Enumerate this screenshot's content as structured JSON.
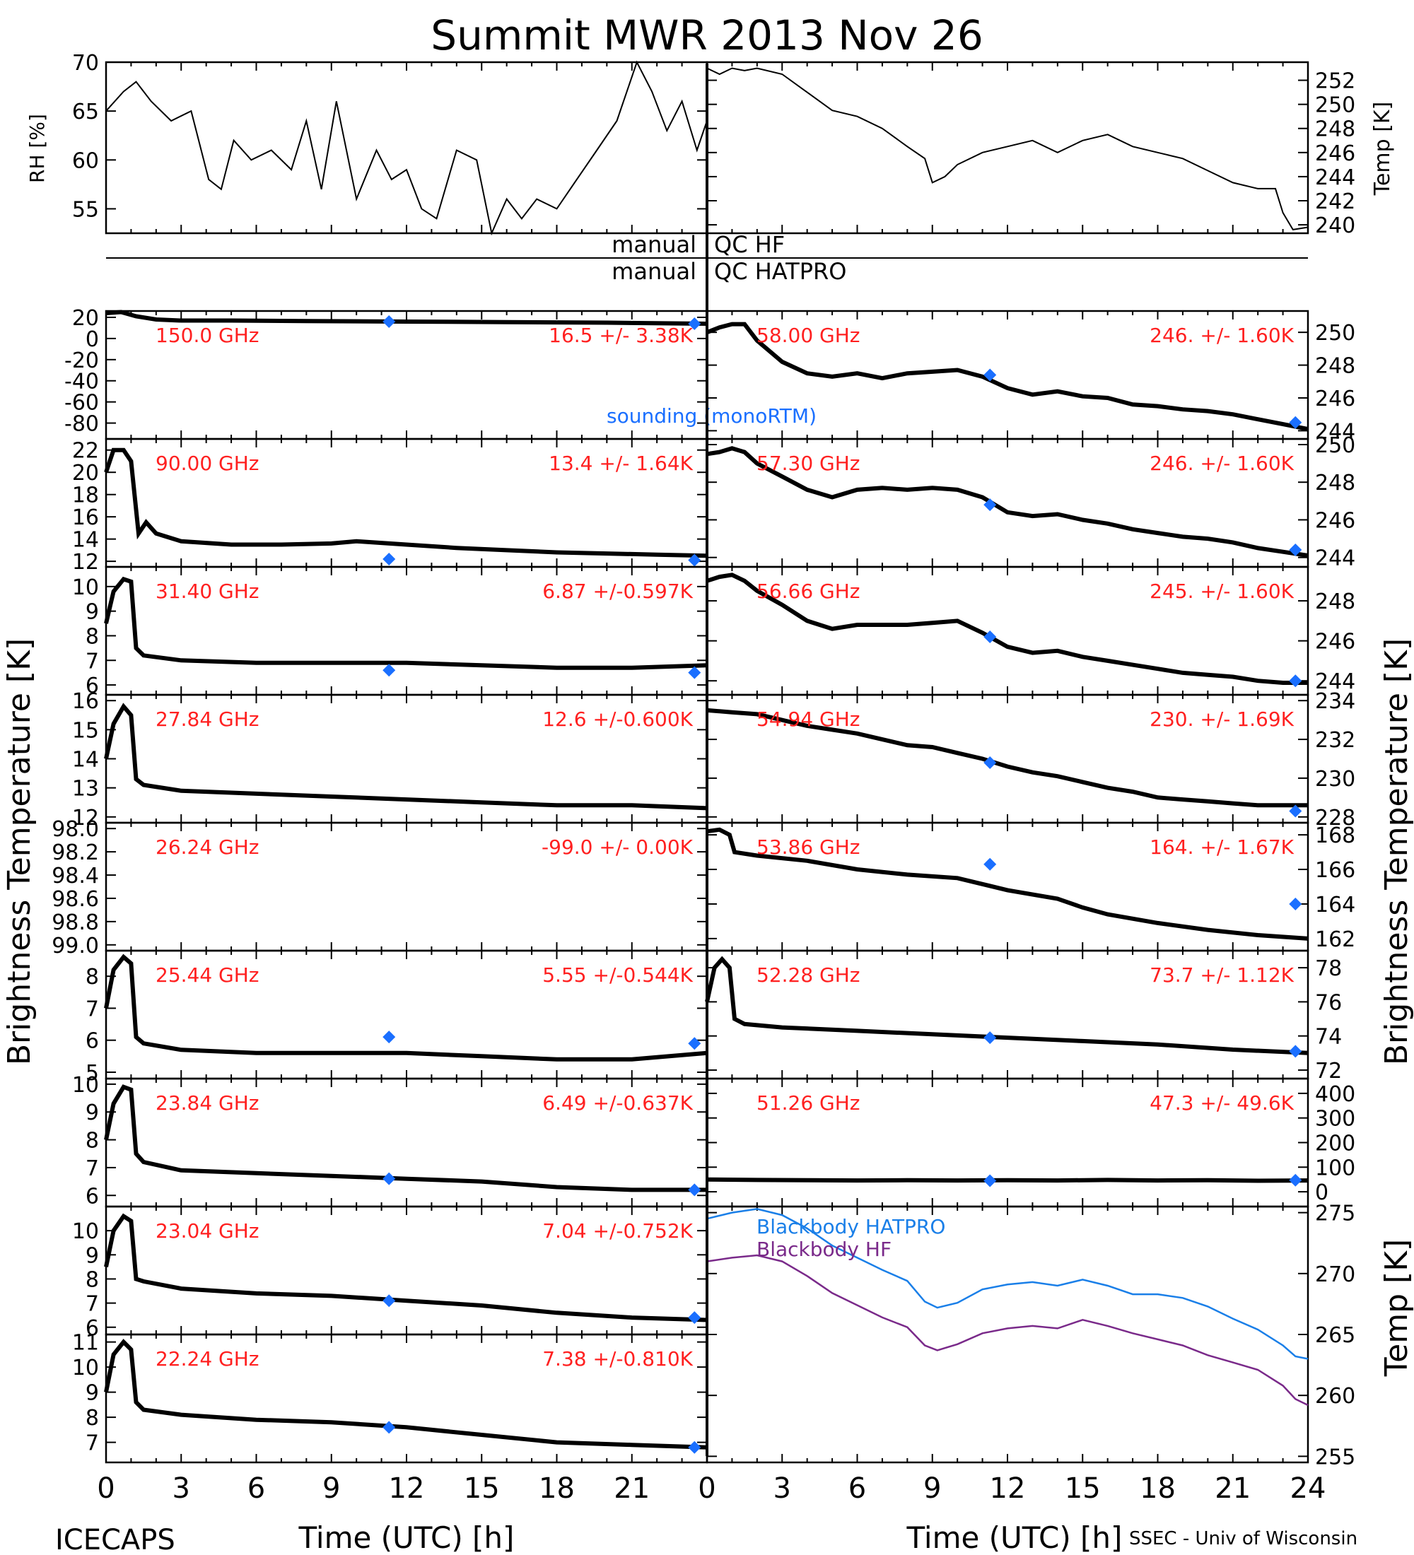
{
  "title": "Summit MWR 2013 Nov 26",
  "footer": {
    "left": "ICECAPS",
    "right": "SSEC - Univ of Wisconsin"
  },
  "colors": {
    "data": "#000000",
    "label": "#ff2020",
    "sounding": "#1a6fff",
    "blackbody_hatpro": "#1a7fe8",
    "blackbody_hf": "#7a2a8a"
  },
  "qc_lines": [
    {
      "left": "manual",
      "right": "QC HF"
    },
    {
      "left": "manual",
      "right": "QC HATPRO"
    }
  ],
  "axis_labels": {
    "time": "Time (UTC) [h]",
    "bt_left": "Brightness Temperature [K]",
    "bt_right": "Brightness Temperature [K]",
    "rh": "RH [%]",
    "temp_top": "Temp [K]",
    "temp_bb": "Temp [K]"
  },
  "chart_data": [
    {
      "id": "rh",
      "type": "line",
      "ylabel": "RH [%]",
      "xlim": [
        0,
        24
      ],
      "ylim": [
        52.5,
        70
      ],
      "yticks": [
        55,
        60,
        65,
        70
      ],
      "x": [
        0,
        0.7,
        1.2,
        1.8,
        2.6,
        3.4,
        4.1,
        4.6,
        5.1,
        5.8,
        6.6,
        7.4,
        8,
        8.6,
        9.2,
        10,
        10.8,
        11.4,
        12,
        12.6,
        13.2,
        14,
        14.8,
        15.4,
        16,
        16.6,
        17.2,
        18,
        18.8,
        19.6,
        20.4,
        21.2,
        21.8,
        22.4,
        23,
        23.6,
        24
      ],
      "y": [
        65,
        67,
        68,
        66,
        64,
        65,
        58,
        57,
        62,
        60,
        61,
        59,
        64,
        57,
        66,
        56,
        61,
        58,
        59,
        55,
        54,
        61,
        60,
        52.5,
        56,
        54,
        56,
        55,
        58,
        61,
        64,
        70,
        67,
        63,
        66,
        61,
        64
      ]
    },
    {
      "id": "temp_top",
      "type": "line",
      "ylabel": "Temp [K]",
      "xlim": [
        0,
        24
      ],
      "ylim": [
        239.3,
        253.5
      ],
      "yticks": [
        240,
        242,
        244,
        246,
        248,
        250,
        252
      ],
      "x": [
        0,
        0.5,
        1,
        1.5,
        2,
        3,
        4,
        5,
        6,
        7,
        8,
        8.7,
        9,
        9.5,
        10,
        11,
        12,
        13,
        14,
        15,
        16,
        17,
        18,
        19,
        20,
        21,
        22,
        22.7,
        23,
        23.4,
        24
      ],
      "y": [
        253,
        252.5,
        253,
        252.8,
        253,
        252.5,
        251,
        249.5,
        249,
        248,
        246.5,
        245.5,
        243.5,
        244,
        245,
        246,
        246.5,
        247,
        246,
        247,
        247.5,
        246.5,
        246,
        245.5,
        244.5,
        243.5,
        243,
        243,
        241,
        239.6,
        239.8
      ]
    },
    {
      "id": "ch_150",
      "type": "line",
      "side": "left",
      "label": "150.0 GHz",
      "stats": "16.5 +/- 3.38K",
      "ylim": [
        -95,
        26
      ],
      "yticks": [
        20,
        0,
        -20,
        -40,
        -60,
        -80
      ],
      "x": [
        0,
        0.6,
        1.2,
        2,
        3,
        5,
        8,
        12,
        16,
        20,
        24
      ],
      "y": [
        24,
        25,
        21,
        18,
        17,
        17,
        16.5,
        16,
        15.5,
        15,
        14
      ],
      "sounding": {
        "x": [
          11.3,
          23.5
        ],
        "y": [
          16,
          14
        ]
      }
    },
    {
      "id": "ch_90",
      "type": "line",
      "side": "left",
      "label": "90.00 GHz",
      "stats": "13.4 +/- 1.64K",
      "ylim": [
        11.5,
        23
      ],
      "yticks": [
        12,
        14,
        16,
        18,
        20,
        22
      ],
      "x": [
        0,
        0.3,
        0.7,
        1,
        1.3,
        1.6,
        2,
        3,
        5,
        7,
        9,
        10,
        12,
        14,
        16,
        18,
        20,
        22,
        24
      ],
      "y": [
        20,
        22,
        22,
        21,
        14.5,
        15.5,
        14.5,
        13.8,
        13.5,
        13.5,
        13.6,
        13.8,
        13.5,
        13.2,
        13,
        12.8,
        12.7,
        12.6,
        12.5
      ],
      "sounding": {
        "x": [
          11.3,
          23.5
        ],
        "y": [
          12.2,
          12.1
        ]
      }
    },
    {
      "id": "ch_3140",
      "type": "line",
      "side": "left",
      "label": "31.40 GHz",
      "stats": "6.87 +/-0.597K",
      "ylim": [
        5.6,
        10.8
      ],
      "yticks": [
        6,
        7,
        8,
        9,
        10
      ],
      "x": [
        0,
        0.3,
        0.7,
        1,
        1.2,
        1.5,
        3,
        6,
        9,
        12,
        15,
        18,
        21,
        24
      ],
      "y": [
        8.5,
        9.8,
        10.3,
        10.2,
        7.5,
        7.2,
        7,
        6.9,
        6.9,
        6.9,
        6.8,
        6.7,
        6.7,
        6.8
      ],
      "sounding": {
        "x": [
          11.3,
          23.5
        ],
        "y": [
          6.6,
          6.5
        ]
      }
    },
    {
      "id": "ch_2784",
      "type": "line",
      "side": "left",
      "label": "27.84 GHz",
      "stats": "12.6 +/-0.600K",
      "ylim": [
        11.8,
        16.2
      ],
      "yticks": [
        12,
        13,
        14,
        15,
        16
      ],
      "x": [
        0,
        0.3,
        0.7,
        1,
        1.2,
        1.5,
        3,
        6,
        9,
        12,
        15,
        18,
        21,
        24
      ],
      "y": [
        14,
        15.2,
        15.8,
        15.5,
        13.3,
        13.1,
        12.9,
        12.8,
        12.7,
        12.6,
        12.5,
        12.4,
        12.4,
        12.3
      ],
      "sounding": {
        "x": [],
        "y": []
      }
    },
    {
      "id": "ch_2624",
      "type": "line",
      "side": "left",
      "label": "26.24 GHz",
      "stats": "-99.0 +/- 0.00K",
      "ylim": [
        -99.05,
        -97.95
      ],
      "yticks": [
        -98.0,
        -98.2,
        -98.4,
        -98.6,
        -98.8,
        -99.0
      ],
      "tick_labels": [
        "98.0",
        "98.2",
        "98.4",
        "98.6",
        "98.8",
        "99.0"
      ],
      "x": [],
      "y": [],
      "sounding": {
        "x": [],
        "y": []
      }
    },
    {
      "id": "ch_2544",
      "type": "line",
      "side": "left",
      "label": "25.44 GHz",
      "stats": "5.55 +/-0.544K",
      "ylim": [
        4.8,
        8.8
      ],
      "yticks": [
        5,
        6,
        7,
        8
      ],
      "x": [
        0,
        0.3,
        0.7,
        1,
        1.2,
        1.5,
        3,
        6,
        9,
        12,
        15,
        18,
        21,
        24
      ],
      "y": [
        7,
        8.2,
        8.6,
        8.4,
        6.1,
        5.9,
        5.7,
        5.6,
        5.6,
        5.6,
        5.5,
        5.4,
        5.4,
        5.6
      ],
      "sounding": {
        "x": [
          11.3,
          23.5
        ],
        "y": [
          6.1,
          5.9
        ]
      }
    },
    {
      "id": "ch_2384",
      "type": "line",
      "side": "left",
      "label": "23.84 GHz",
      "stats": "6.49 +/-0.637K",
      "ylim": [
        5.6,
        10.2
      ],
      "yticks": [
        6,
        7,
        8,
        9,
        10
      ],
      "x": [
        0,
        0.3,
        0.7,
        1,
        1.2,
        1.5,
        3,
        6,
        9,
        12,
        15,
        18,
        21,
        24
      ],
      "y": [
        8,
        9.3,
        9.9,
        9.8,
        7.5,
        7.2,
        6.9,
        6.8,
        6.7,
        6.6,
        6.5,
        6.3,
        6.2,
        6.2
      ],
      "sounding": {
        "x": [
          11.3,
          23.5
        ],
        "y": [
          6.6,
          6.2
        ]
      }
    },
    {
      "id": "ch_2304",
      "type": "line",
      "side": "left",
      "label": "23.04 GHz",
      "stats": "7.04 +/-0.752K",
      "ylim": [
        5.7,
        11
      ],
      "yticks": [
        6,
        7,
        8,
        9,
        10
      ],
      "x": [
        0,
        0.3,
        0.7,
        1,
        1.2,
        1.5,
        3,
        6,
        9,
        12,
        15,
        18,
        21,
        24
      ],
      "y": [
        8.5,
        10,
        10.6,
        10.4,
        8,
        7.9,
        7.6,
        7.4,
        7.3,
        7.1,
        6.9,
        6.6,
        6.4,
        6.3
      ],
      "sounding": {
        "x": [
          11.3,
          23.5
        ],
        "y": [
          7.1,
          6.4
        ]
      }
    },
    {
      "id": "ch_2224",
      "type": "line",
      "side": "left",
      "label": "22.24 GHz",
      "stats": "7.38 +/-0.810K",
      "ylim": [
        6.2,
        11.3
      ],
      "yticks": [
        7,
        8,
        9,
        10,
        11
      ],
      "x": [
        0,
        0.3,
        0.7,
        1,
        1.2,
        1.5,
        3,
        6,
        9,
        12,
        15,
        18,
        21,
        24
      ],
      "y": [
        9,
        10.5,
        11,
        10.7,
        8.6,
        8.3,
        8.1,
        7.9,
        7.8,
        7.6,
        7.3,
        7,
        6.9,
        6.8
      ],
      "sounding": {
        "x": [
          11.3,
          23.5
        ],
        "y": [
          7.6,
          6.8
        ]
      }
    },
    {
      "id": "ch_5800",
      "type": "line",
      "side": "right",
      "label": "58.00 GHz",
      "stats": "246. +/- 1.60K",
      "ylim": [
        243.5,
        251.3
      ],
      "yticks": [
        244,
        246,
        248,
        250
      ],
      "x": [
        0,
        0.5,
        1,
        1.5,
        2,
        3,
        4,
        5,
        6,
        7,
        8,
        9,
        10,
        11,
        12,
        13,
        14,
        15,
        16,
        17,
        18,
        19,
        20,
        21,
        22,
        23,
        24
      ],
      "y": [
        250,
        250.3,
        250.5,
        250.5,
        249.5,
        248.2,
        247.5,
        247.3,
        247.5,
        247.2,
        247.5,
        247.6,
        247.7,
        247.3,
        246.6,
        246.2,
        246.4,
        246.1,
        246,
        245.6,
        245.5,
        245.3,
        245.2,
        245,
        244.7,
        244.4,
        244.1
      ],
      "sounding": {
        "x": [
          11.3,
          23.5
        ],
        "y": [
          247.4,
          244.5
        ]
      }
    },
    {
      "id": "ch_5730",
      "type": "line",
      "side": "right",
      "label": "57.30 GHz",
      "stats": "246. +/- 1.60K",
      "ylim": [
        243.5,
        250.3
      ],
      "yticks": [
        244,
        246,
        248,
        250
      ],
      "x": [
        0,
        0.5,
        1,
        1.5,
        2,
        3,
        4,
        5,
        6,
        7,
        8,
        9,
        10,
        11,
        12,
        13,
        14,
        15,
        16,
        17,
        18,
        19,
        20,
        21,
        22,
        23,
        24
      ],
      "y": [
        249.5,
        249.6,
        249.8,
        249.6,
        249,
        248.3,
        247.6,
        247.2,
        247.6,
        247.7,
        247.6,
        247.7,
        247.6,
        247.2,
        246.4,
        246.2,
        246.3,
        246,
        245.8,
        245.5,
        245.3,
        245.1,
        245,
        244.8,
        244.5,
        244.3,
        244.1
      ],
      "sounding": {
        "x": [
          11.3,
          23.5
        ],
        "y": [
          246.8,
          244.4
        ]
      }
    },
    {
      "id": "ch_5666",
      "type": "line",
      "side": "right",
      "label": "56.66 GHz",
      "stats": "245. +/- 1.60K",
      "ylim": [
        243.3,
        249.7
      ],
      "yticks": [
        244,
        246,
        248
      ],
      "x": [
        0,
        0.5,
        1,
        1.5,
        2,
        3,
        4,
        5,
        6,
        7,
        8,
        9,
        10,
        11,
        12,
        13,
        14,
        15,
        16,
        17,
        18,
        19,
        20,
        21,
        22,
        23,
        24
      ],
      "y": [
        249,
        249.2,
        249.3,
        249,
        248.5,
        247.8,
        247,
        246.6,
        246.8,
        246.8,
        246.8,
        246.9,
        247,
        246.4,
        245.7,
        245.4,
        245.5,
        245.2,
        245,
        244.8,
        244.6,
        244.4,
        244.3,
        244.2,
        244,
        243.9,
        243.9
      ],
      "sounding": {
        "x": [
          11.3,
          23.5
        ],
        "y": [
          246.2,
          244
        ]
      }
    },
    {
      "id": "ch_5494",
      "type": "line",
      "side": "right",
      "label": "54.94 GHz",
      "stats": "230. +/- 1.69K",
      "ylim": [
        227.7,
        234.3
      ],
      "yticks": [
        228,
        230,
        232,
        234
      ],
      "x": [
        0,
        1,
        2,
        3,
        4,
        5,
        6,
        7,
        8,
        9,
        10,
        11,
        12,
        13,
        14,
        15,
        16,
        17,
        18,
        19,
        20,
        21,
        22,
        23,
        24
      ],
      "y": [
        233.5,
        233.4,
        233.3,
        233,
        232.7,
        232.5,
        232.3,
        232,
        231.7,
        231.6,
        231.3,
        231,
        230.6,
        230.3,
        230.1,
        229.8,
        229.5,
        229.3,
        229,
        228.9,
        228.8,
        228.7,
        228.6,
        228.6,
        228.6
      ],
      "sounding": {
        "x": [
          11.3,
          23.5
        ],
        "y": [
          230.8,
          228.3
        ]
      }
    },
    {
      "id": "ch_5386",
      "type": "line",
      "side": "right",
      "label": "53.86 GHz",
      "stats": "164. +/- 1.67K",
      "ylim": [
        161.3,
        168.7
      ],
      "yticks": [
        162,
        164,
        166,
        168
      ],
      "x": [
        0,
        0.5,
        0.9,
        1.1,
        2,
        4,
        6,
        8,
        10,
        12,
        14,
        15,
        16,
        18,
        20,
        22,
        24
      ],
      "y": [
        168.2,
        168.3,
        168,
        167,
        166.8,
        166.5,
        166,
        165.7,
        165.5,
        164.8,
        164.3,
        163.8,
        163.4,
        162.9,
        162.5,
        162.2,
        162
      ],
      "sounding": {
        "x": [
          11.3,
          23.5
        ],
        "y": [
          166.3,
          164
        ]
      }
    },
    {
      "id": "ch_5228",
      "type": "line",
      "side": "right",
      "label": "52.28 GHz",
      "stats": "73.7 +/- 1.12K",
      "ylim": [
        71.5,
        79
      ],
      "yticks": [
        72,
        74,
        76,
        78
      ],
      "x": [
        0,
        0.3,
        0.6,
        0.9,
        1.1,
        1.5,
        3,
        6,
        9,
        12,
        15,
        18,
        21,
        24
      ],
      "y": [
        76,
        78,
        78.5,
        78,
        75,
        74.7,
        74.5,
        74.3,
        74.1,
        73.9,
        73.7,
        73.5,
        73.2,
        73
      ],
      "sounding": {
        "x": [
          11.3,
          23.5
        ],
        "y": [
          73.9,
          73.1
        ]
      }
    },
    {
      "id": "ch_5126",
      "type": "line",
      "side": "right",
      "label": "51.26 GHz",
      "stats": "47.3 +/- 49.6K",
      "ylim": [
        -60,
        460
      ],
      "yticks": [
        0,
        100,
        200,
        300,
        400
      ],
      "x": [
        0,
        2,
        4,
        6,
        8,
        10,
        12,
        14,
        16,
        18,
        20,
        22,
        24
      ],
      "y": [
        50,
        48,
        47,
        46,
        47,
        46,
        47,
        46,
        48,
        46,
        47,
        45,
        46
      ],
      "sounding": {
        "x": [
          11.3,
          23.5
        ],
        "y": [
          45,
          47
        ]
      }
    },
    {
      "id": "blackbody",
      "type": "line",
      "ylabel": "Temp [K]",
      "xlim": [
        0,
        24
      ],
      "ylim": [
        254.5,
        275.5
      ],
      "yticks": [
        255,
        260,
        265,
        270,
        275
      ],
      "series": [
        {
          "name": "Blackbody HATPRO",
          "x": [
            0,
            1,
            2,
            3,
            4,
            5,
            6,
            7,
            8,
            8.7,
            9.2,
            10,
            11,
            12,
            13,
            14,
            15,
            16,
            17,
            18,
            19,
            20,
            21,
            22,
            23,
            23.5,
            24
          ],
          "y": [
            274.5,
            275,
            275.3,
            274.8,
            273.7,
            272.3,
            271.3,
            270.3,
            269.4,
            267.7,
            267.2,
            267.6,
            268.7,
            269.1,
            269.3,
            269,
            269.5,
            269,
            268.3,
            268.3,
            268,
            267.3,
            266.3,
            265.4,
            264.1,
            263.2,
            263
          ]
        },
        {
          "name": "Blackbody HF",
          "x": [
            0,
            1,
            2,
            3,
            4,
            5,
            6,
            7,
            8,
            8.7,
            9.2,
            10,
            11,
            12,
            13,
            14,
            15,
            16,
            17,
            18,
            19,
            20,
            21,
            22,
            23,
            23.5,
            24
          ],
          "y": [
            271,
            271.3,
            271.5,
            271,
            269.8,
            268.4,
            267.4,
            266.4,
            265.6,
            264.1,
            263.7,
            264.2,
            265.1,
            265.5,
            265.7,
            265.5,
            266.2,
            265.7,
            265.1,
            264.6,
            264.1,
            263.3,
            262.7,
            262.1,
            260.8,
            259.7,
            259.2
          ]
        }
      ]
    }
  ]
}
